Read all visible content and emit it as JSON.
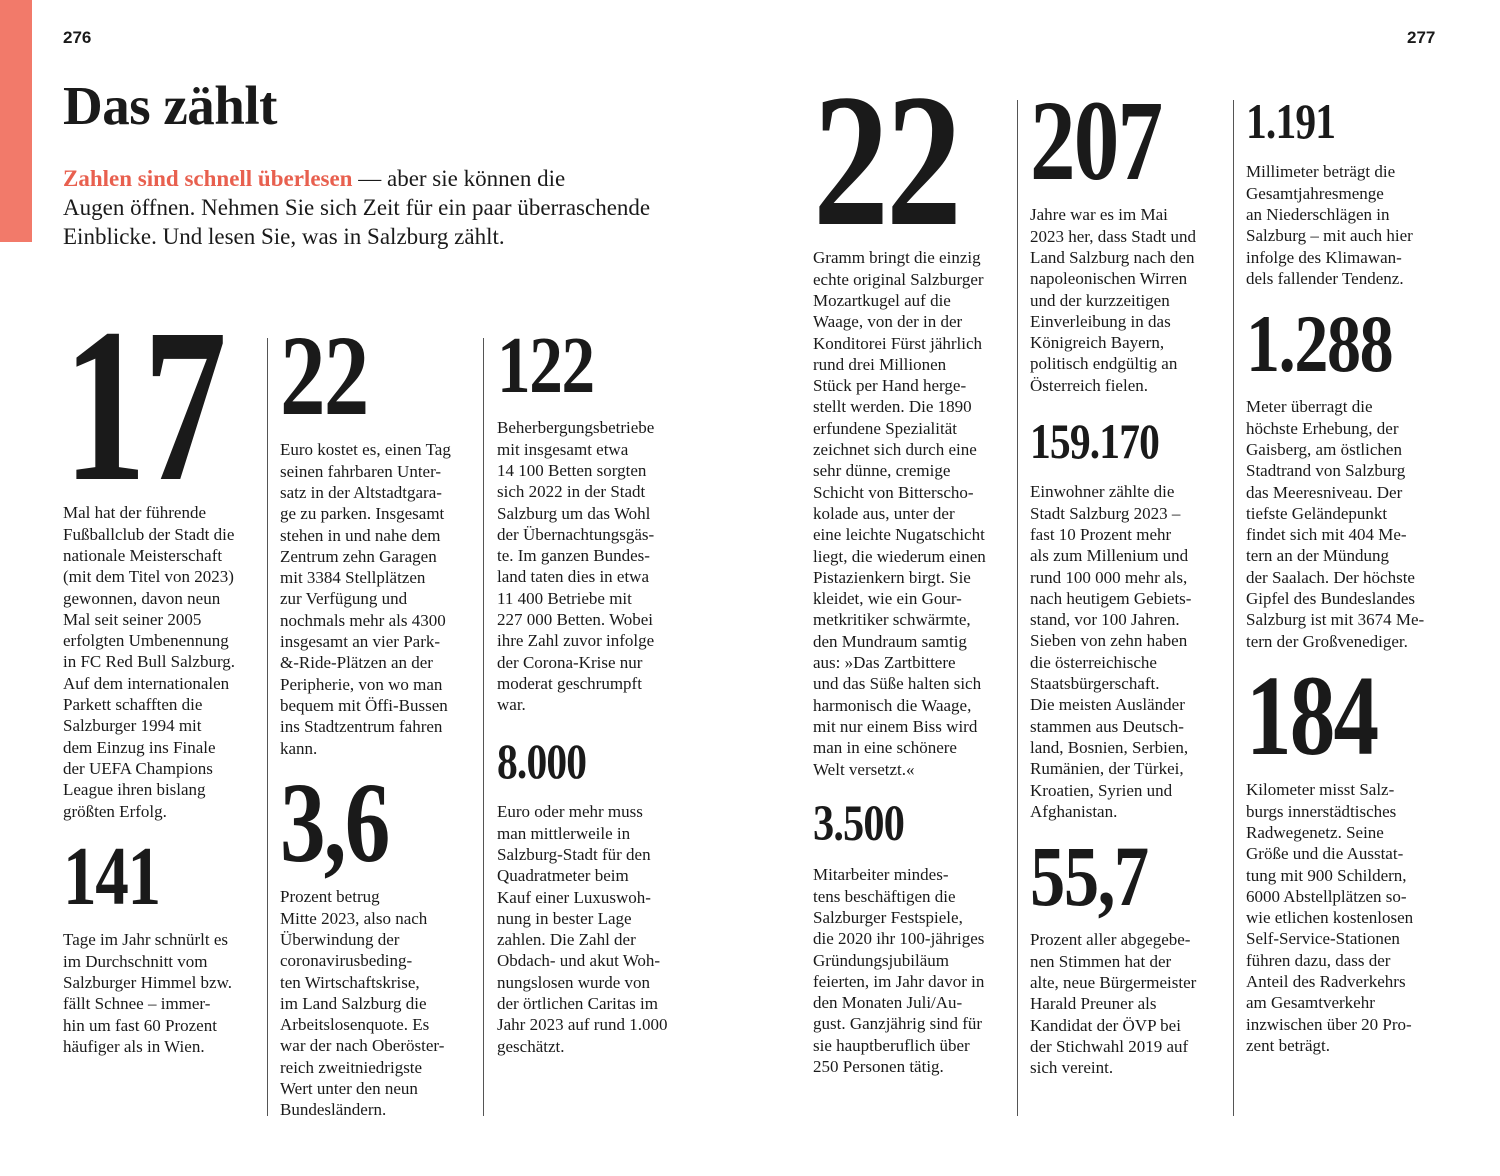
{
  "left_page": {
    "page_number": "276",
    "title": "Das zählt",
    "intro": {
      "highlight": "Zahlen sind schnell überlesen",
      "lines": [
        "— aber sie können die",
        "Augen öffnen. Nehmen Sie sich Zeit für ein paar überraschende",
        "Einblicke. Und lesen Sie, was in Salzburg zählt."
      ]
    }
  },
  "right_page": {
    "page_number": "277"
  },
  "columns": [
    [
      {
        "number": "17",
        "text": [
          "Mal hat der führende",
          "Fußballclub der Stadt die",
          "nationale Meisterschaft",
          "(mit dem Titel von 2023)",
          "gewonnen, davon neun",
          "Mal seit seiner 2005",
          "erfolgten Umbenennung",
          "in FC Red Bull Salzburg.",
          "Auf dem internationalen",
          "Parkett schafften die",
          "Salzburger 1994 mit",
          "dem Einzug ins Finale",
          "der UEFA Champions",
          "League ihren bislang",
          "größten Erfolg."
        ]
      },
      {
        "number": "141",
        "text": [
          "Tage im Jahr schnürlt es",
          "im Durchschnitt vom",
          "Salzburger Himmel bzw.",
          "fällt Schnee – immer-",
          "hin um fast 60 Prozent",
          "häufiger als in Wien."
        ]
      }
    ],
    [
      {
        "number": "22",
        "text": [
          "Euro kostet es, einen Tag",
          "seinen fahrbaren Unter-",
          "satz in der Altstadtgara-",
          "ge zu parken. Insgesamt",
          "stehen in und nahe dem",
          "Zentrum zehn Garagen",
          "mit 3384 Stellplätzen",
          "zur Verfügung und",
          "nochmals mehr als 4300",
          "insgesamt an vier Park-",
          "&-Ride-Plätzen an der",
          "Peripherie, von wo man",
          "bequem mit Öffi-Bussen",
          "ins Stadtzentrum fahren",
          "kann."
        ]
      },
      {
        "number": "3,6",
        "text": [
          "Prozent betrug",
          "Mitte 2023, also nach",
          "Überwindung der",
          "coronavirusbeding-",
          "ten Wirtschaftskrise,",
          "im Land Salzburg die",
          "Arbeitslosenquote. Es",
          "war der nach Oberöster-",
          "reich zweitniedrigste",
          "Wert unter den neun",
          "Bundesländern."
        ]
      }
    ],
    [
      {
        "number": "122",
        "text": [
          "Beherbergungsbetriebe",
          "mit insgesamt etwa",
          "14 100 Betten sorgten",
          "sich 2022 in der Stadt",
          "Salzburg um das Wohl",
          "der Übernachtungsgäs-",
          "te. Im ganzen Bundes-",
          "land taten dies in etwa",
          "11 400 Betriebe mit",
          "227 000 Betten. Wobei",
          "ihre Zahl zuvor infolge",
          "der Corona-Krise nur",
          "moderat geschrumpft",
          "war."
        ]
      },
      {
        "number": "8.000",
        "text": [
          "Euro oder mehr muss",
          "man mittlerweile in",
          "Salzburg-Stadt für den",
          "Quadratmeter beim",
          "Kauf einer Luxuswoh-",
          "nung in bester Lage",
          "zahlen. Die Zahl der",
          "Obdach- und akut Woh-",
          "nungslosen wurde von",
          "der örtlichen Caritas im",
          "Jahr 2023 auf rund 1.000",
          "geschätzt."
        ]
      }
    ],
    [
      {
        "number": "22",
        "text": [
          "Gramm bringt die einzig",
          "echte original Salzburger",
          "Mozartkugel auf die",
          "Waage, von der in der",
          "Konditorei Fürst jährlich",
          "rund drei Millionen",
          "Stück per Hand herge-",
          "stellt werden. Die 1890",
          "erfundene Spezialität",
          "zeichnet sich durch eine",
          "sehr dünne, cremige",
          "Schicht von Bitterscho-",
          "kolade aus, unter der",
          "eine leichte Nugatschicht",
          "liegt, die wiederum einen",
          "Pistazienkern birgt. Sie",
          "kleidet, wie ein Gour-",
          "metkritiker schwärmte,",
          "den Mundraum samtig",
          "aus: »Das Zartbittere",
          "und das Süße halten sich",
          "harmonisch die Waage,",
          "mit nur einem Biss wird",
          "man in eine schönere",
          "Welt versetzt.«"
        ]
      },
      {
        "number": "3.500",
        "text": [
          "Mitarbeiter mindes-",
          "tens beschäftigen die",
          "Salzburger Festspiele,",
          "die 2020 ihr 100-jähriges",
          "Gründungsjubiläum",
          "feierten, im Jahr davor in",
          "den Monaten Juli/Au-",
          "gust. Ganzjährig sind für",
          "sie hauptberuflich über",
          "250 Personen tätig."
        ]
      }
    ],
    [
      {
        "number": "207",
        "text": [
          "Jahre war es im Mai",
          "2023 her, dass Stadt und",
          "Land Salzburg nach den",
          "napoleonischen Wirren",
          "und der kurzzeitigen",
          "Einverleibung in das",
          "Königreich Bayern,",
          "politisch endgültig an",
          "Österreich fielen."
        ]
      },
      {
        "number": "159.170",
        "text": [
          "Einwohner zählte die",
          "Stadt Salzburg 2023 –",
          "fast 10 Prozent mehr",
          "als zum Millenium und",
          "rund 100 000 mehr als,",
          "nach heutigem Gebiets-",
          "stand, vor 100 Jahren.",
          "Sieben von zehn haben",
          "die österreichische",
          "Staatsbürgerschaft.",
          "Die meisten Ausländer",
          "stammen aus Deutsch-",
          "land, Bosnien, Serbien,",
          "Rumänien, der Türkei,",
          "Kroatien, Syrien und",
          "Afghanistan."
        ]
      },
      {
        "number": "55,7",
        "text": [
          "Prozent aller abgegebe-",
          "nen Stimmen hat der",
          "alte, neue Bürgermeister",
          "Harald Preuner als",
          "Kandidat der ÖVP bei",
          "der Stichwahl 2019 auf",
          "sich vereint."
        ]
      }
    ],
    [
      {
        "number": "1.191",
        "text": [
          "Millimeter beträgt die",
          "Gesamtjahresmenge",
          "an Niederschlägen in",
          "Salzburg – mit auch hier",
          "infolge des Klimawan-",
          "dels fallender Tendenz."
        ]
      },
      {
        "number": "1.288",
        "text": [
          "Meter überragt die",
          "höchste Erhebung, der",
          "Gaisberg, am östlichen",
          "Stadtrand von Salzburg",
          "das Meeresniveau. Der",
          "tiefste Geländepunkt",
          "findet sich mit 404 Me-",
          "tern an der Mündung",
          "der Saalach. Der höchste",
          "Gipfel des Bundeslandes",
          "Salzburg ist mit 3674 Me-",
          "tern der Großvenediger."
        ]
      },
      {
        "number": "184",
        "text": [
          "Kilometer misst Salz-",
          "burgs innerstädtisches",
          "Radwegenetz. Seine",
          "Größe und die Ausstat-",
          "tung mit 900 Schildern,",
          "6000 Abstellplätzen so-",
          "wie etlichen kostenlosen",
          "Self-Service-Stationen",
          "führen dazu, dass der",
          "Anteil des Radverkehrs",
          "am Gesamtverkehr",
          "inzwischen über 20 Pro-",
          "zent beträgt."
        ]
      }
    ]
  ]
}
